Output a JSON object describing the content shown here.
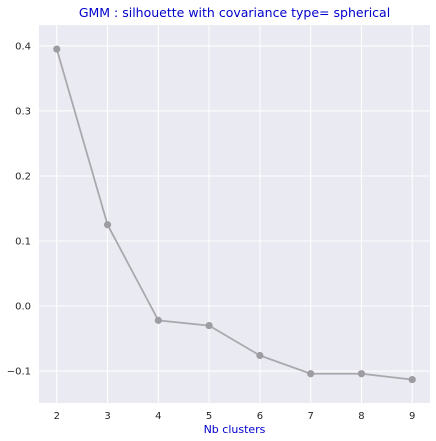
{
  "chart_data": {
    "type": "line",
    "title": "GMM : silhouette with covariance type= spherical",
    "xlabel": "Nb clusters",
    "ylabel": "",
    "x": [
      2,
      3,
      4,
      5,
      6,
      7,
      8,
      9
    ],
    "series": [
      {
        "values": [
          0.395,
          0.125,
          -0.022,
          -0.03,
          -0.076,
          -0.104,
          -0.104,
          -0.113
        ]
      }
    ],
    "xlim": [
      1.65,
      9.35
    ],
    "ylim": [
      -0.149,
      0.432
    ],
    "xticks": [
      "2",
      "3",
      "4",
      "5",
      "6",
      "7",
      "8",
      "9"
    ],
    "yticks": [
      "0.4",
      "0.3",
      "0.2",
      "0.1",
      "0.0",
      "−0.1"
    ],
    "ytick_values": [
      0.4,
      0.3,
      0.2,
      0.1,
      0.0,
      -0.1
    ],
    "grid": true,
    "legend": "none",
    "colors": {
      "plot_background": "#eaeaf2",
      "grid": "#ffffff",
      "line": "#a9a9ad",
      "marker": "#9c9ca2",
      "title": "#0000cc",
      "xlabel": "#0000cc"
    }
  }
}
